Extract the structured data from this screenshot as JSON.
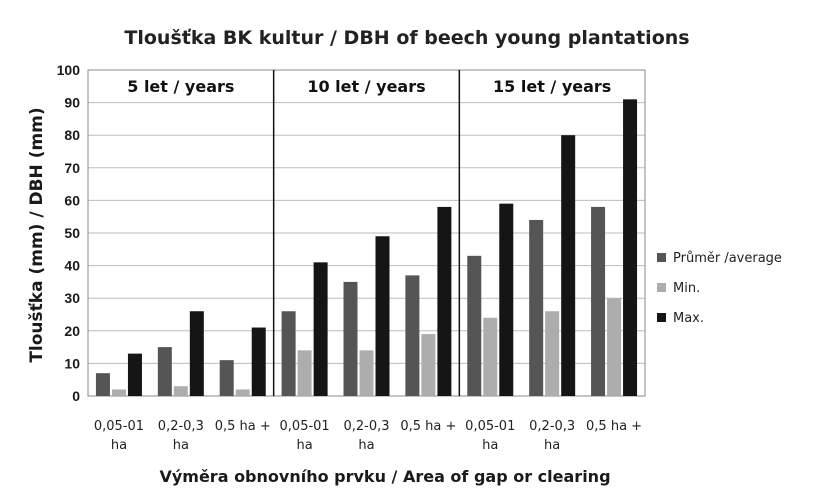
{
  "chart_data": {
    "type": "bar",
    "title": "Tloušťka BK kultur / DBH of beech young plantations",
    "xlabel": "Výměra obnovního prvku / Area of gap or clearing",
    "ylabel": "Tloušťka (mm) / DBH (mm)",
    "ylim": [
      0,
      100
    ],
    "yticks": [
      0,
      10,
      20,
      30,
      40,
      50,
      60,
      70,
      80,
      90,
      100
    ],
    "grid": true,
    "legend_position": "right",
    "groups": [
      "5 let / years",
      "10 let / years",
      "15 let / years"
    ],
    "categories": [
      [
        "0,05-01",
        "ha"
      ],
      [
        "0,2-0,3",
        "ha"
      ],
      [
        "0,5 ha +"
      ],
      [
        "0,05-01",
        "ha"
      ],
      [
        "0,2-0,3",
        "ha"
      ],
      [
        "0,5 ha +"
      ],
      [
        "0,05-01",
        "ha"
      ],
      [
        "0,2-0,3",
        "ha"
      ],
      [
        "0,5 ha +"
      ]
    ],
    "series": [
      {
        "name": "Průměr /average",
        "color": "#555555",
        "values": [
          7,
          15,
          11,
          26,
          35,
          37,
          43,
          54,
          58
        ]
      },
      {
        "name": "Min.",
        "color": "#adadad",
        "values": [
          2,
          3,
          2,
          14,
          14,
          19,
          24,
          26,
          30
        ]
      },
      {
        "name": "Max.",
        "color": "#151515",
        "values": [
          13,
          26,
          21,
          41,
          49,
          58,
          59,
          80,
          91
        ]
      }
    ]
  }
}
